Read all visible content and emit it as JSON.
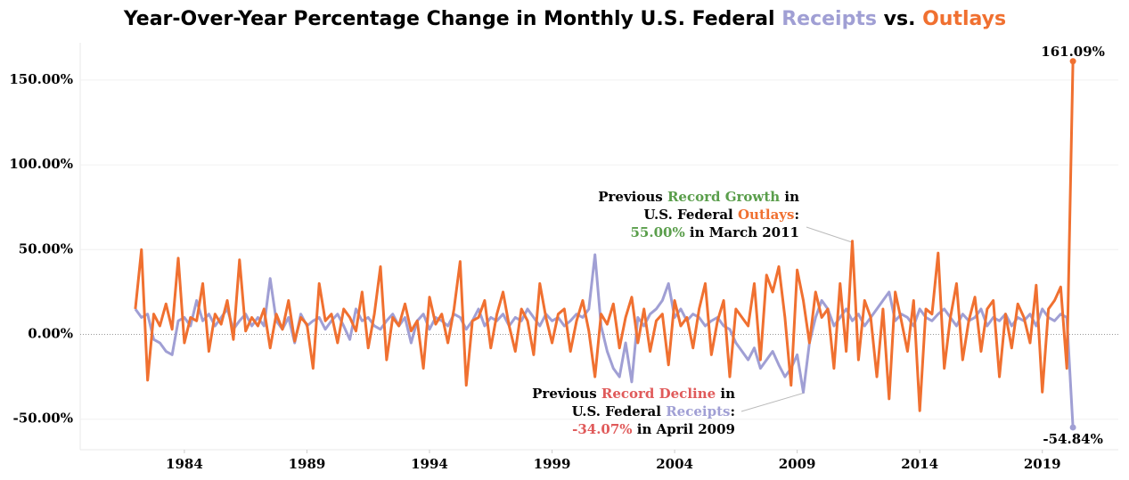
{
  "chart_data": {
    "type": "line",
    "title_parts": [
      {
        "text": "Year-Over-Year Percentage Change in Monthly U.S. Federal ",
        "color": "#000000"
      },
      {
        "text": "Receipts",
        "color": "#a09fd4"
      },
      {
        "text": " vs. ",
        "color": "#000000"
      },
      {
        "text": "Outlays",
        "color": "#f07030"
      }
    ],
    "xlim": [
      1979.75,
      2022.1
    ],
    "xticks": [
      1984,
      1989,
      1994,
      1999,
      2004,
      2009,
      2014,
      2019
    ],
    "ylim": [
      -68,
      172
    ],
    "yticks": [
      {
        "value": -50,
        "label": "-50.00%"
      },
      {
        "value": 0,
        "label": "0.00%"
      },
      {
        "value": 50,
        "label": "50.00%"
      },
      {
        "value": 100,
        "label": "100.00%"
      },
      {
        "value": 150,
        "label": "150.00%"
      }
    ],
    "grid": true,
    "x": [
      1982,
      1982.25,
      1982.5,
      1982.75,
      1983,
      1983.25,
      1983.5,
      1983.75,
      1984,
      1984.25,
      1984.5,
      1984.75,
      1985,
      1985.25,
      1985.5,
      1985.75,
      1986,
      1986.25,
      1986.5,
      1986.75,
      1987,
      1987.25,
      1987.5,
      1987.75,
      1988,
      1988.25,
      1988.5,
      1988.75,
      1989,
      1989.25,
      1989.5,
      1989.75,
      1990,
      1990.25,
      1990.5,
      1990.75,
      1991,
      1991.25,
      1991.5,
      1991.75,
      1992,
      1992.25,
      1992.5,
      1992.75,
      1993,
      1993.25,
      1993.5,
      1993.75,
      1994,
      1994.25,
      1994.5,
      1994.75,
      1995,
      1995.25,
      1995.5,
      1995.75,
      1996,
      1996.25,
      1996.5,
      1996.75,
      1997,
      1997.25,
      1997.5,
      1997.75,
      1998,
      1998.25,
      1998.5,
      1998.75,
      1999,
      1999.25,
      1999.5,
      1999.75,
      2000,
      2000.25,
      2000.5,
      2000.75,
      2001,
      2001.25,
      2001.5,
      2001.75,
      2002,
      2002.25,
      2002.5,
      2002.75,
      2003,
      2003.25,
      2003.5,
      2003.75,
      2004,
      2004.25,
      2004.5,
      2004.75,
      2005,
      2005.25,
      2005.5,
      2005.75,
      2006,
      2006.25,
      2006.5,
      2006.75,
      2007,
      2007.25,
      2007.5,
      2007.75,
      2008,
      2008.25,
      2008.5,
      2008.75,
      2009,
      2009.25,
      2009.5,
      2009.75,
      2010,
      2010.25,
      2010.5,
      2010.75,
      2011,
      2011.25,
      2011.5,
      2011.75,
      2012,
      2012.25,
      2012.5,
      2012.75,
      2013,
      2013.25,
      2013.5,
      2013.75,
      2014,
      2014.25,
      2014.5,
      2014.75,
      2015,
      2015.25,
      2015.5,
      2015.75,
      2016,
      2016.25,
      2016.5,
      2016.75,
      2017,
      2017.25,
      2017.5,
      2017.75,
      2018,
      2018.25,
      2018.5,
      2018.75,
      2019,
      2019.25,
      2019.5,
      2019.75,
      2020,
      2020.25
    ],
    "series": [
      {
        "name": "Outlays",
        "color": "#f07030",
        "values": [
          15,
          50,
          -27,
          12,
          5,
          18,
          3,
          45,
          -5,
          10,
          8,
          30,
          -10,
          12,
          6,
          20,
          -3,
          44,
          2,
          10,
          5,
          15,
          -8,
          12,
          3,
          20,
          -4,
          10,
          6,
          -20,
          30,
          8,
          12,
          -5,
          15,
          10,
          2,
          25,
          -8,
          12,
          40,
          -15,
          10,
          5,
          18,
          2,
          8,
          -20,
          22,
          6,
          12,
          -5,
          15,
          43,
          -30,
          8,
          10,
          20,
          -8,
          12,
          25,
          5,
          -10,
          15,
          8,
          -12,
          30,
          10,
          -5,
          12,
          15,
          -10,
          8,
          20,
          2,
          -25,
          12,
          6,
          18,
          -8,
          10,
          22,
          -5,
          15,
          -10,
          8,
          12,
          -18,
          20,
          5,
          10,
          -8,
          15,
          30,
          -12,
          8,
          20,
          -25,
          15,
          10,
          5,
          30,
          -15,
          35,
          25,
          40,
          10,
          -30,
          38,
          20,
          -5,
          25,
          10,
          15,
          -20,
          30,
          -10,
          55,
          -15,
          20,
          10,
          -25,
          15,
          -38,
          25,
          8,
          -10,
          20,
          -45,
          15,
          12,
          48,
          -20,
          10,
          30,
          -15,
          8,
          22,
          -10,
          15,
          20,
          -25,
          12,
          -8,
          18,
          10,
          -5,
          29,
          -34,
          15,
          20,
          28,
          -20,
          161.09
        ],
        "value_labels": [
          null,
          null,
          null,
          null,
          null,
          null,
          null,
          null,
          null,
          null,
          null,
          null,
          null,
          null,
          null,
          null,
          null,
          null,
          null,
          null,
          null,
          null,
          null,
          null,
          null,
          null,
          null,
          null,
          null,
          null,
          null,
          null,
          null,
          null,
          null,
          null,
          null,
          null,
          null,
          null,
          null,
          null,
          null,
          null,
          null,
          null,
          null,
          null,
          null,
          null,
          null,
          null,
          null,
          null,
          null,
          null,
          null,
          null,
          null,
          null,
          null,
          null,
          null,
          null,
          null,
          null,
          null,
          null,
          null,
          null,
          null,
          null,
          null,
          null,
          null,
          null,
          null,
          null,
          null,
          null,
          null,
          null,
          null,
          null,
          null,
          null,
          null,
          null,
          null,
          null,
          null,
          null,
          null,
          null,
          null,
          null,
          null,
          null,
          null,
          null,
          null,
          null,
          null,
          null,
          null,
          null,
          null,
          null,
          null,
          null,
          null,
          null,
          null,
          null,
          null,
          null,
          null,
          null,
          null,
          null,
          null,
          null,
          null,
          null,
          null,
          null,
          null,
          null,
          null,
          null,
          null,
          null,
          null,
          null,
          null,
          null,
          null,
          null,
          null,
          null,
          null,
          null,
          null,
          null,
          null,
          null,
          null,
          null,
          null,
          null,
          null,
          null,
          null,
          "161.09%"
        ]
      },
      {
        "name": "Receipts",
        "color": "#a09fd4",
        "values": [
          15,
          10,
          12,
          -3,
          -5,
          -10,
          -12,
          8,
          10,
          5,
          20,
          8,
          12,
          5,
          10,
          15,
          3,
          8,
          12,
          5,
          10,
          5,
          33,
          8,
          3,
          10,
          -5,
          12,
          5,
          8,
          10,
          3,
          8,
          12,
          5,
          -3,
          15,
          8,
          10,
          5,
          3,
          8,
          12,
          5,
          10,
          -5,
          8,
          12,
          3,
          10,
          8,
          5,
          12,
          10,
          3,
          8,
          15,
          5,
          10,
          8,
          12,
          5,
          10,
          8,
          15,
          10,
          5,
          12,
          8,
          10,
          5,
          8,
          12,
          10,
          15,
          47,
          5,
          -10,
          -20,
          -25,
          -5,
          -28,
          10,
          5,
          12,
          15,
          20,
          30,
          10,
          15,
          8,
          12,
          10,
          5,
          8,
          10,
          5,
          3,
          -5,
          -10,
          -15,
          -8,
          -20,
          -15,
          -10,
          -18,
          -25,
          -20,
          -12,
          -34.07,
          -5,
          10,
          20,
          15,
          5,
          10,
          15,
          8,
          12,
          5,
          10,
          15,
          20,
          25,
          8,
          12,
          10,
          5,
          15,
          10,
          8,
          12,
          15,
          10,
          5,
          12,
          8,
          10,
          15,
          5,
          10,
          8,
          12,
          5,
          10,
          8,
          12,
          5,
          15,
          10,
          8,
          12,
          10,
          -54.84
        ],
        "value_labels": [
          null,
          null,
          null,
          null,
          null,
          null,
          null,
          null,
          null,
          null,
          null,
          null,
          null,
          null,
          null,
          null,
          null,
          null,
          null,
          null,
          null,
          null,
          null,
          null,
          null,
          null,
          null,
          null,
          null,
          null,
          null,
          null,
          null,
          null,
          null,
          null,
          null,
          null,
          null,
          null,
          null,
          null,
          null,
          null,
          null,
          null,
          null,
          null,
          null,
          null,
          null,
          null,
          null,
          null,
          null,
          null,
          null,
          null,
          null,
          null,
          null,
          null,
          null,
          null,
          null,
          null,
          null,
          null,
          null,
          null,
          null,
          null,
          null,
          null,
          null,
          null,
          null,
          null,
          null,
          null,
          null,
          null,
          null,
          null,
          null,
          null,
          null,
          null,
          null,
          null,
          null,
          null,
          null,
          null,
          null,
          null,
          null,
          null,
          null,
          null,
          null,
          null,
          null,
          null,
          null,
          null,
          null,
          null,
          null,
          null,
          null,
          null,
          null,
          null,
          null,
          null,
          null,
          null,
          null,
          null,
          null,
          null,
          null,
          null,
          null,
          null,
          null,
          null,
          null,
          null,
          null,
          null,
          null,
          null,
          null,
          null,
          null,
          null,
          null,
          null,
          null,
          null,
          null,
          null,
          null,
          null,
          null,
          null,
          null,
          null,
          null,
          null,
          null,
          "-54.84%"
        ]
      }
    ],
    "annotations": [
      {
        "lines": [
          [
            {
              "text": "Previous ",
              "color": "#000000"
            },
            {
              "text": "Record Growth",
              "color": "#5a9e4b"
            },
            {
              "text": " in",
              "color": "#000000"
            }
          ],
          [
            {
              "text": "U.S. Federal ",
              "color": "#000000"
            },
            {
              "text": "Outlays",
              "color": "#f07030"
            },
            {
              "text": ":",
              "color": "#000000"
            }
          ],
          [
            {
              "text": "55.00%",
              "color": "#5a9e4b"
            },
            {
              "text": " in March 2011",
              "color": "#000000"
            }
          ]
        ]
      },
      {
        "lines": [
          [
            {
              "text": "Previous ",
              "color": "#000000"
            },
            {
              "text": "Record Decline",
              "color": "#e05a5a"
            },
            {
              "text": " in",
              "color": "#000000"
            }
          ],
          [
            {
              "text": "U.S. Federal ",
              "color": "#000000"
            },
            {
              "text": "Receipts",
              "color": "#a09fd4"
            },
            {
              "text": ":",
              "color": "#000000"
            }
          ],
          [
            {
              "text": "-34.07%",
              "color": "#e05a5a"
            },
            {
              "text": " in April 2009",
              "color": "#000000"
            }
          ]
        ]
      }
    ]
  }
}
